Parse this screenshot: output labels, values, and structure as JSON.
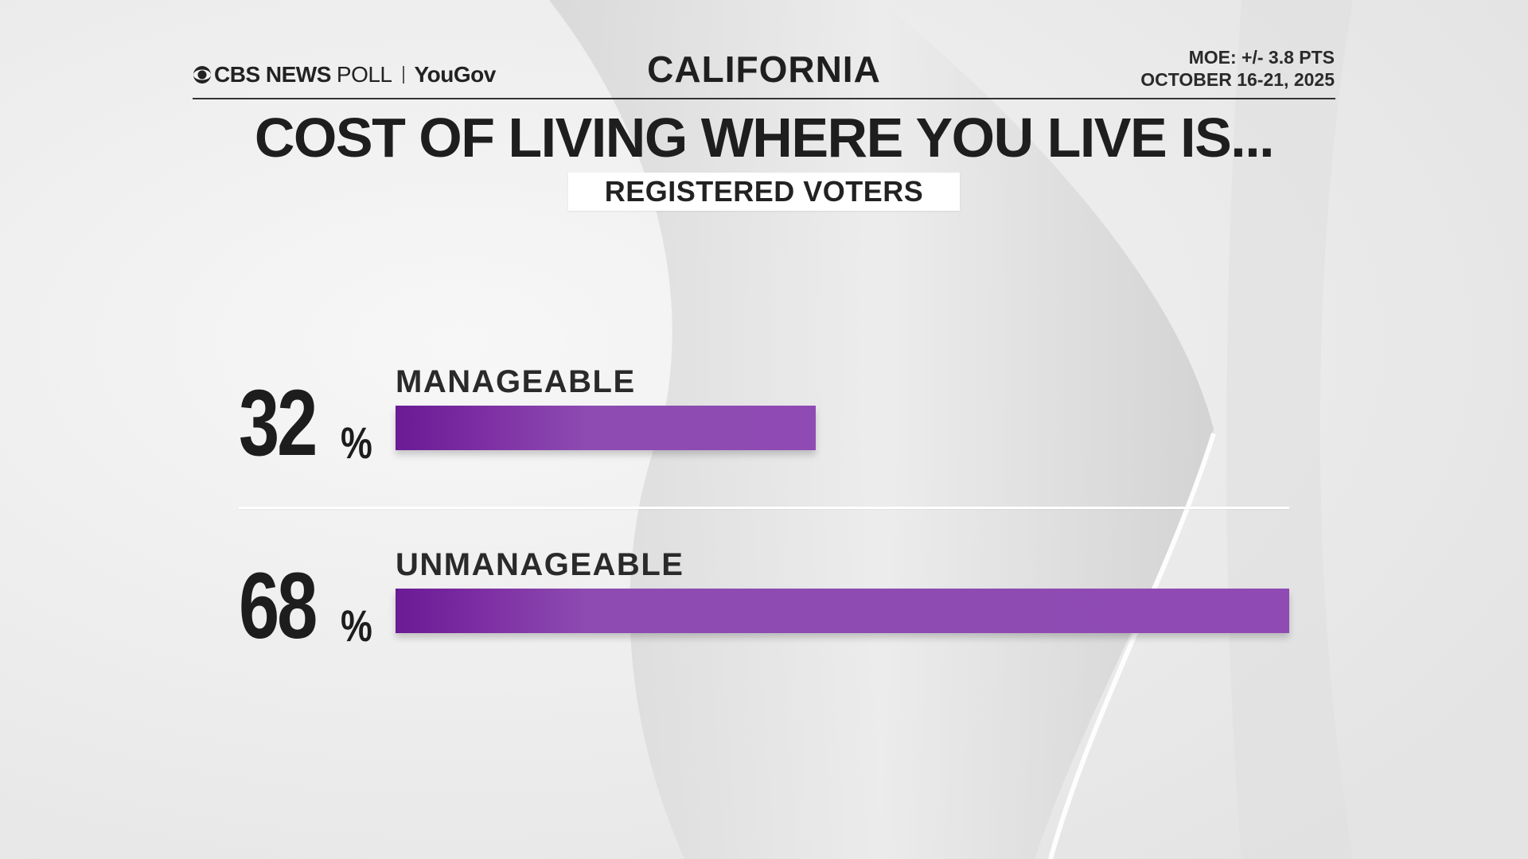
{
  "header": {
    "brand_primary": "CBS NEWS",
    "brand_secondary": "POLL",
    "brand_partner": "YouGov",
    "region": "CALIFORNIA",
    "moe": "MOE: +/- 3.8 PTS",
    "dates": "OCTOBER 16-21, 2025"
  },
  "colors": {
    "bar": "#8e4bb2",
    "bar_dark": "#6a1b95",
    "text": "#222222",
    "background": "#eeeeee"
  },
  "chart_data": {
    "type": "bar",
    "orientation": "horizontal",
    "title": "COST OF LIVING WHERE YOU LIVE IS...",
    "subtitle": "REGISTERED VOTERS",
    "categories": [
      "MANAGEABLE",
      "UNMANAGEABLE"
    ],
    "values": [
      32,
      68
    ],
    "value_labels": [
      "32",
      "68"
    ],
    "unit": "%",
    "xlim": [
      0,
      68
    ],
    "grid": false,
    "legend": "none"
  }
}
